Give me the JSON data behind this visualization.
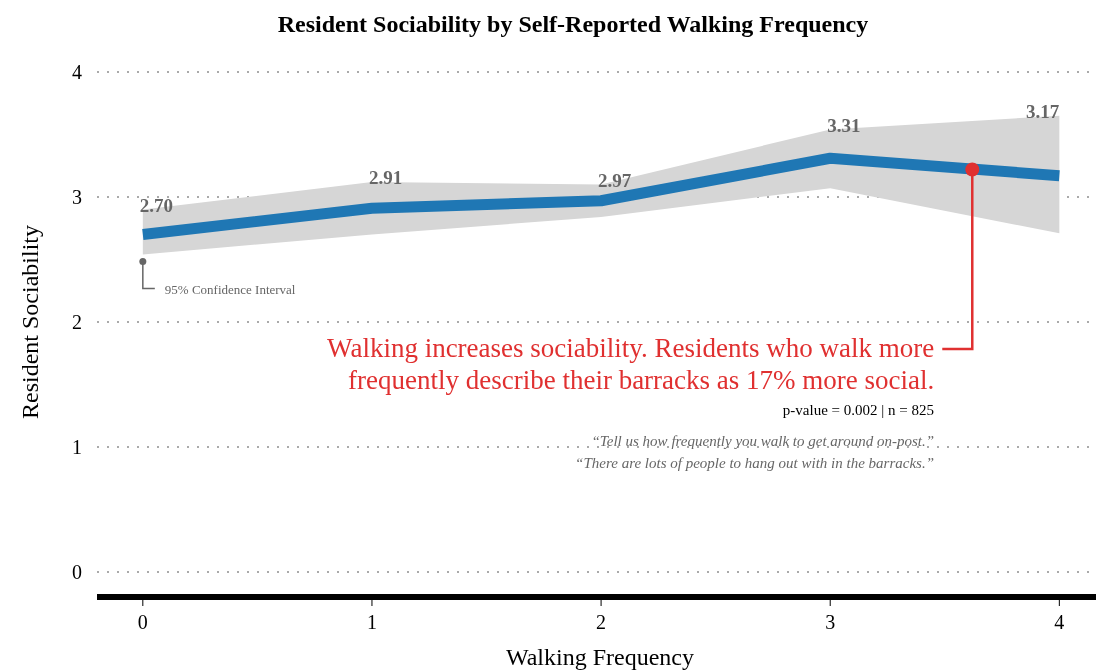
{
  "chart_data": {
    "type": "line",
    "title": "Resident Sociability by Self-Reported Walking Frequency",
    "xlabel": "Walking Frequency",
    "ylabel": "Resident Sociability",
    "x": [
      0,
      1,
      2,
      3,
      4
    ],
    "series": [
      {
        "color": "#1f77b4",
        "values": [
          2.7,
          2.91,
          2.97,
          3.31,
          3.17
        ],
        "value_labels": [
          "2.70",
          "2.91",
          "2.97",
          "3.31",
          "3.17"
        ],
        "lower": [
          2.54,
          2.7,
          2.84,
          3.07,
          2.71
        ],
        "upper": [
          2.9,
          3.12,
          3.1,
          3.54,
          3.65
        ]
      }
    ],
    "xlim": [
      -0.2,
      4.16
    ],
    "ylim": [
      -0.2,
      4
    ],
    "xticks": [
      0,
      1,
      2,
      3,
      4
    ],
    "yticks": [
      0,
      1,
      2,
      3,
      4
    ],
    "grid": "y",
    "marker": "none",
    "line_style": "solid",
    "annotations": [
      {
        "text": "95% Confidence Interval",
        "x": 0,
        "y": 2.54
      },
      {
        "text": "Walking increases sociability. Residents who walk more frequently describe their barracks as 17% more social.",
        "x": 3.62,
        "y": 3.22
      },
      "p-value = 0.002 | n = 825",
      "“Tell us how frequently you walk to get around on-post.”",
      "“There are lots of people to hang out with in the barracks.”"
    ]
  }
}
